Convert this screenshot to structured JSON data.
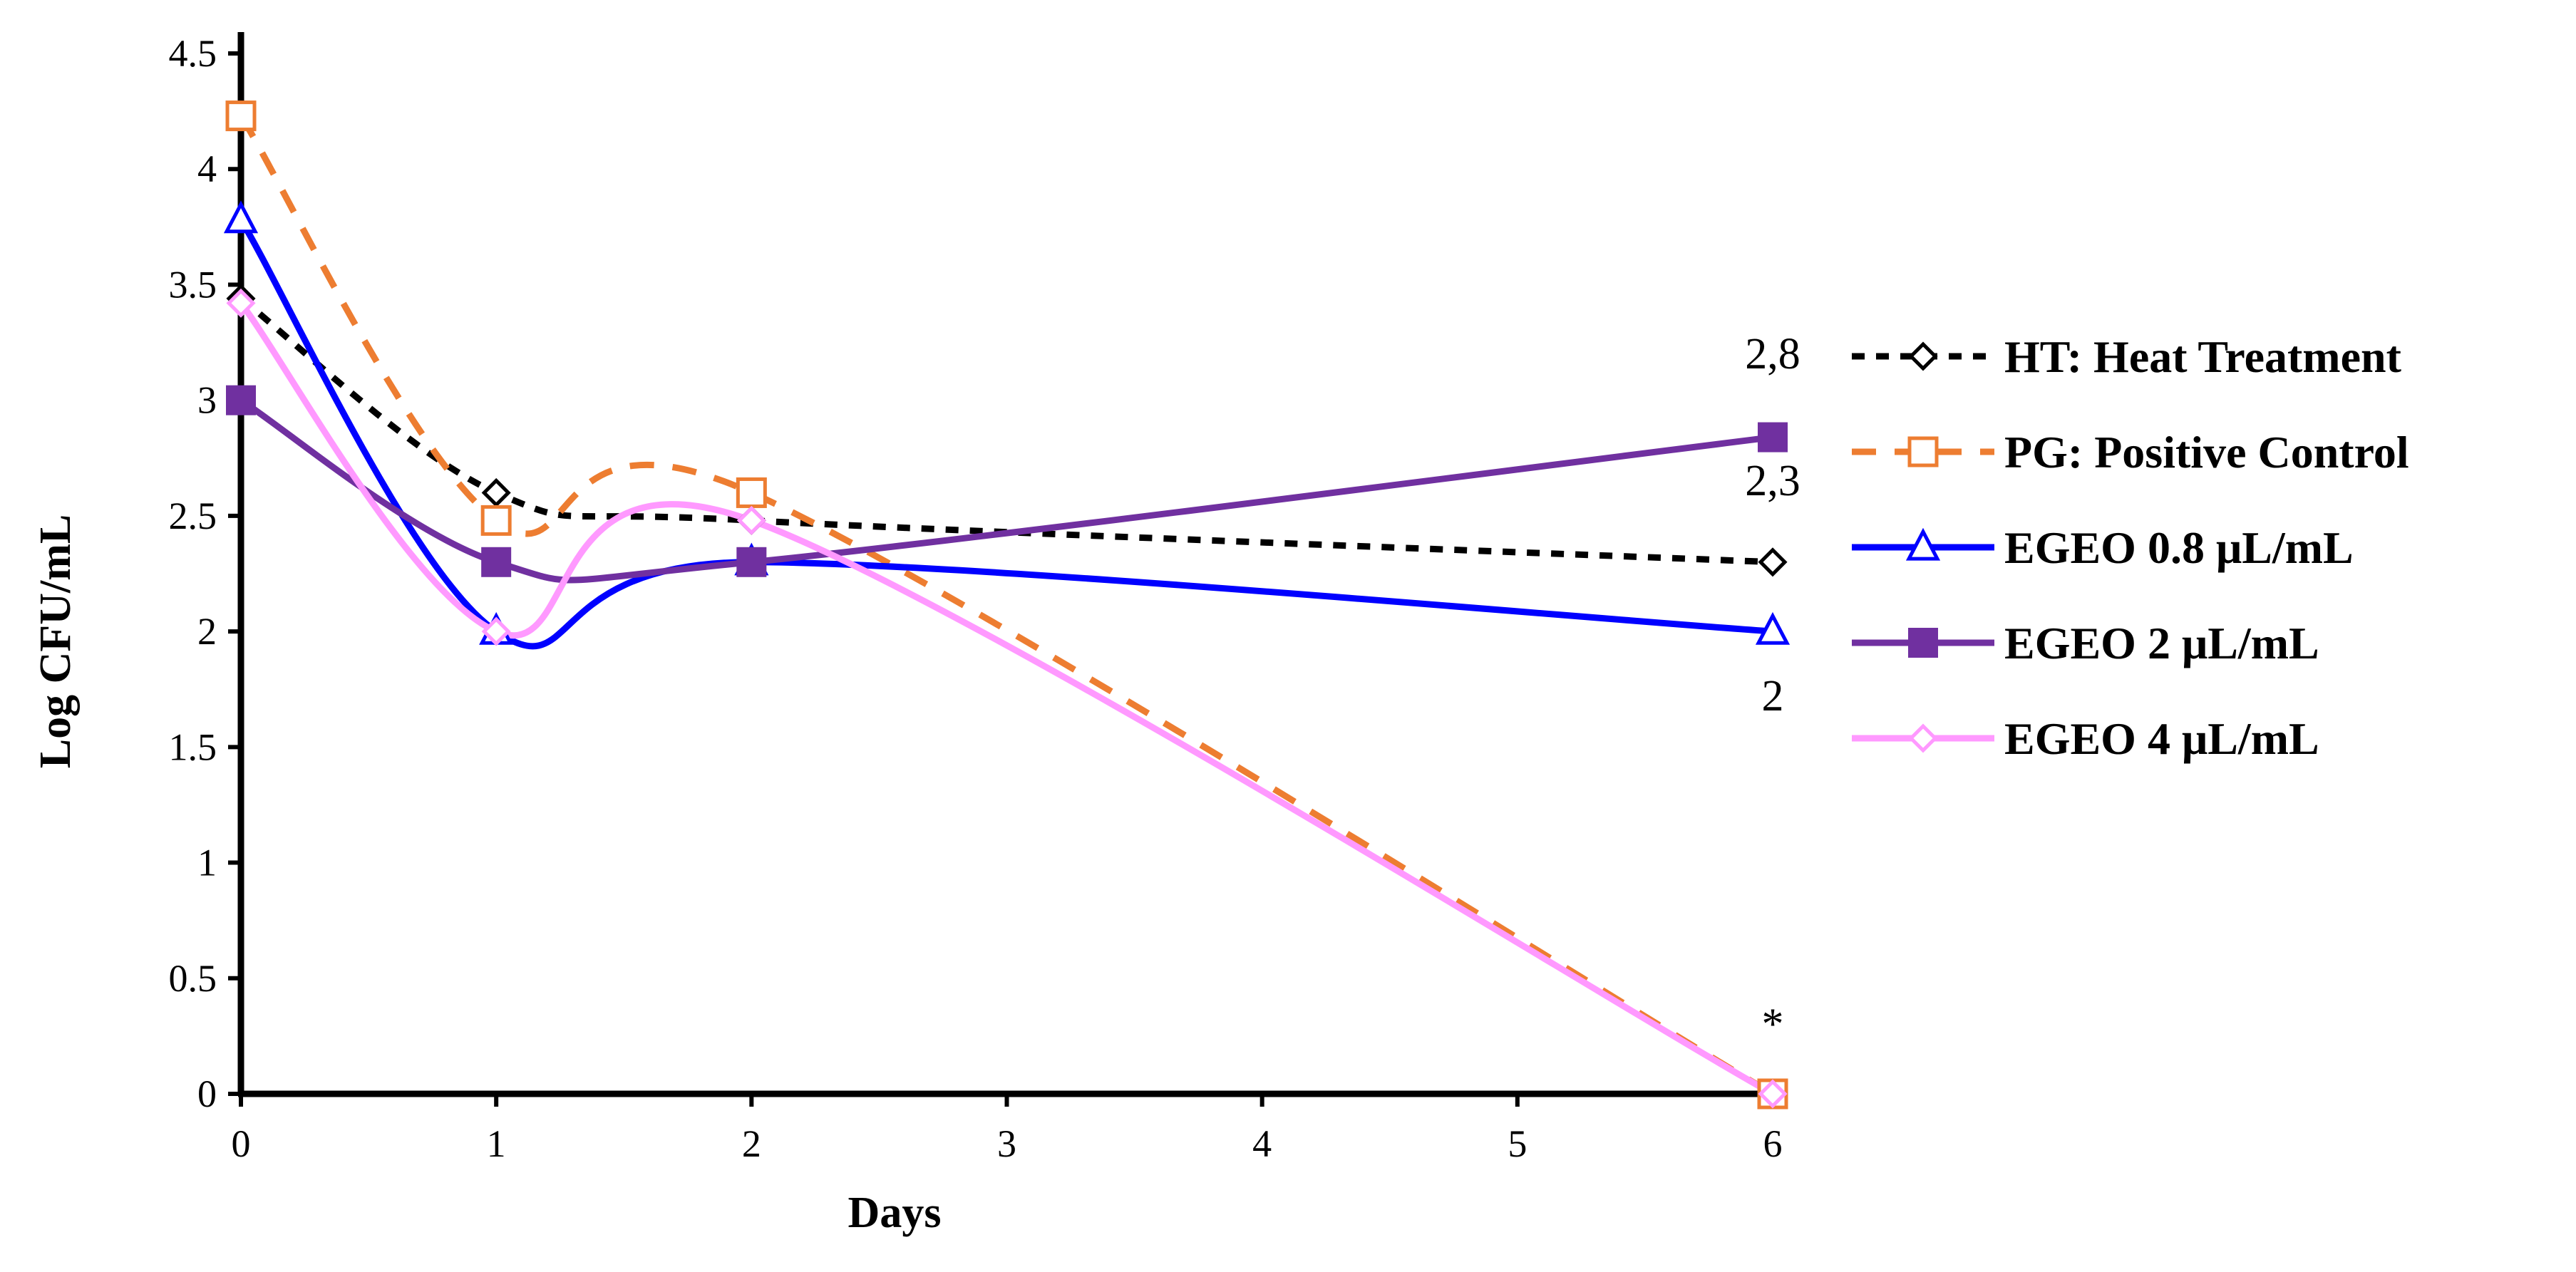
{
  "chart_data": {
    "type": "line",
    "title": "",
    "xlabel": "Days",
    "ylabel": "Log CFU/mL",
    "xlim": [
      0,
      6
    ],
    "ylim": [
      0,
      4.5
    ],
    "x_ticks": [
      "0",
      "1",
      "2",
      "3",
      "4",
      "5",
      "6"
    ],
    "y_ticks": [
      "0",
      "0.5",
      "1",
      "1.5",
      "2",
      "2.5",
      "3",
      "3.5",
      "4",
      "4.5"
    ],
    "grid": false,
    "legend_position": "right",
    "series": [
      {
        "name": "HT: Heat Treatment",
        "x": [
          0,
          1,
          2,
          6
        ],
        "values": [
          3.44,
          2.6,
          2.48,
          2.3
        ],
        "color": "#000000",
        "dash": "dotted",
        "marker": "diamond-open"
      },
      {
        "name": "PG: Positive Control",
        "x": [
          0,
          1,
          2,
          6
        ],
        "values": [
          4.23,
          2.48,
          2.6,
          0
        ],
        "color": "#ED7D31",
        "dash": "dashed",
        "marker": "square-open"
      },
      {
        "name": "EGEO 0.8 μL/mL",
        "x": [
          0,
          1,
          2,
          6
        ],
        "values": [
          3.78,
          2.0,
          2.3,
          2.0
        ],
        "color": "#0000FF",
        "dash": "solid",
        "marker": "triangle-open"
      },
      {
        "name": "EGEO 2 μL/mL",
        "x": [
          0,
          1,
          2,
          6
        ],
        "values": [
          3.0,
          2.3,
          2.3,
          2.84
        ],
        "color": "#7030A0",
        "dash": "solid",
        "marker": "square-filled"
      },
      {
        "name": "EGEO 4 μL/mL",
        "x": [
          0,
          1,
          2,
          6
        ],
        "values": [
          3.42,
          2.0,
          2.48,
          0
        ],
        "color": "#FF99FF",
        "dash": "solid",
        "marker": "diamond-open"
      }
    ],
    "annotations": [
      {
        "text": "2,8",
        "x": 6,
        "y": 3.2
      },
      {
        "text": "2,3",
        "x": 6,
        "y": 2.65
      },
      {
        "text": "2",
        "x": 6,
        "y": 1.72
      },
      {
        "text": "*",
        "x": 6,
        "y": 0.3
      }
    ]
  }
}
